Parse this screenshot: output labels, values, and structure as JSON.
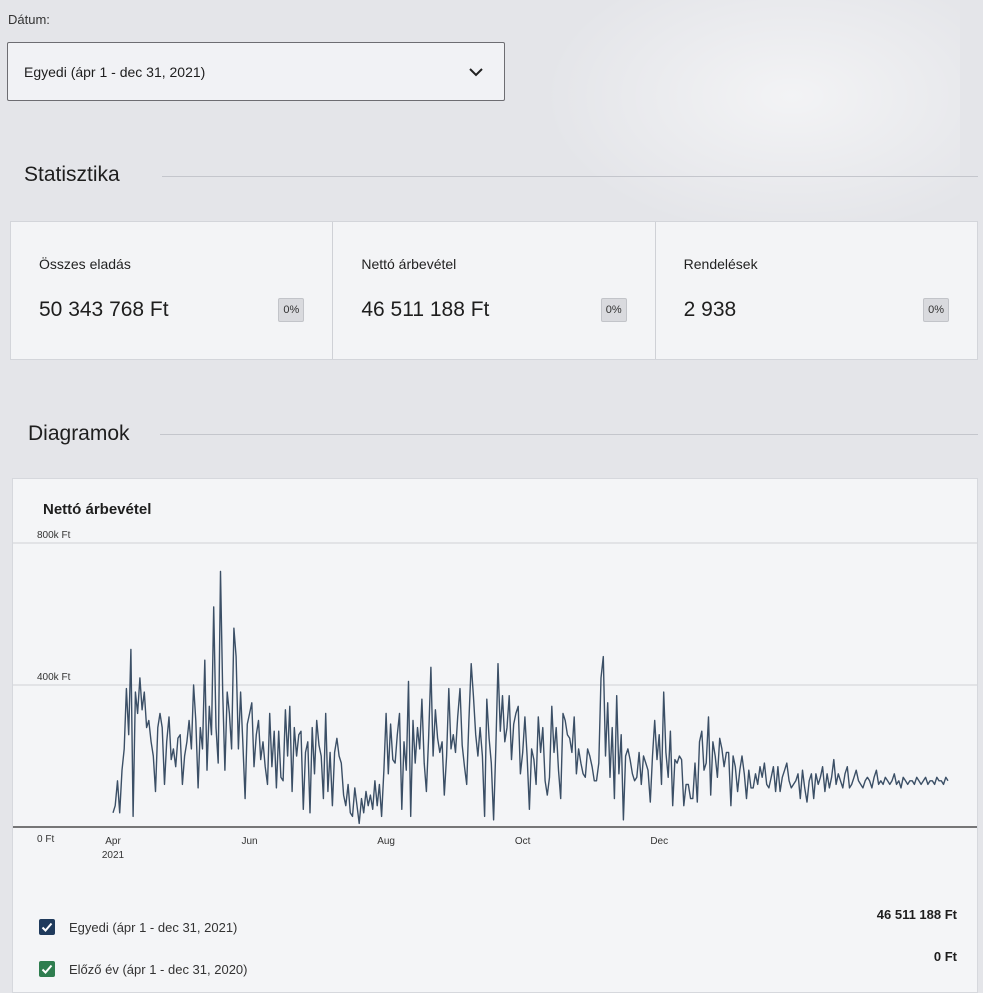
{
  "date_filter": {
    "label": "Dátum:",
    "selected": "Egyedi (ápr 1 - dec 31, 2021)"
  },
  "stats_section": {
    "title": "Statisztika",
    "cards": [
      {
        "label": "Összes eladás",
        "value": "50 343 768 Ft",
        "change": "0%"
      },
      {
        "label": "Nettó árbevétel",
        "value": "46 511 188 Ft",
        "change": "0%"
      },
      {
        "label": "Rendelések",
        "value": "2 938",
        "change": "0%"
      }
    ]
  },
  "charts_section": {
    "title": "Diagramok",
    "chart_title": "Nettó árbevétel"
  },
  "legend": [
    {
      "label": "Egyedi (ápr 1 - dec 31, 2021)",
      "total": "46 511 188 Ft",
      "color": "#1f3a5c"
    },
    {
      "label": "Előző év (ápr 1 - dec 31, 2020)",
      "total": "0 Ft",
      "color": "#2e7d4f"
    }
  ],
  "colors": {
    "line": "#3b4f66",
    "accent": "#1f3a5c"
  },
  "chart_data": {
    "type": "line",
    "title": "Nettó árbevétel",
    "ylim": [
      0,
      800000
    ],
    "y_ticks": [
      0,
      400000,
      800000
    ],
    "y_tick_labels": [
      "0 Ft",
      "400k Ft",
      "800k Ft"
    ],
    "x_ticks": [
      0,
      61,
      122,
      183,
      244
    ],
    "x_tick_labels": [
      "Apr",
      "Jun",
      "Aug",
      "Oct",
      "Dec"
    ],
    "x_year_label": "2021",
    "grid": true,
    "series": [
      {
        "name": "Egyedi (ápr 1 - dec 31, 2021)",
        "values": [
          40000,
          60000,
          130000,
          40000,
          160000,
          220000,
          390000,
          260000,
          500000,
          30000,
          380000,
          320000,
          420000,
          330000,
          380000,
          280000,
          300000,
          240000,
          200000,
          100000,
          280000,
          320000,
          280000,
          120000,
          240000,
          310000,
          190000,
          220000,
          170000,
          250000,
          260000,
          120000,
          200000,
          240000,
          300000,
          220000,
          400000,
          300000,
          110000,
          280000,
          220000,
          470000,
          160000,
          340000,
          260000,
          620000,
          280000,
          180000,
          720000,
          380000,
          160000,
          380000,
          320000,
          220000,
          560000,
          480000,
          220000,
          380000,
          240000,
          80000,
          290000,
          320000,
          350000,
          170000,
          260000,
          300000,
          190000,
          240000,
          170000,
          120000,
          320000,
          170000,
          270000,
          110000,
          270000,
          140000,
          130000,
          330000,
          200000,
          340000,
          100000,
          280000,
          200000,
          260000,
          270000,
          50000,
          210000,
          240000,
          40000,
          280000,
          150000,
          300000,
          230000,
          200000,
          80000,
          320000,
          100000,
          210000,
          60000,
          210000,
          250000,
          200000,
          180000,
          90000,
          60000,
          120000,
          40000,
          30000,
          110000,
          60000,
          10000,
          80000,
          40000,
          100000,
          60000,
          90000,
          50000,
          130000,
          60000,
          120000,
          30000,
          160000,
          320000,
          150000,
          290000,
          190000,
          180000,
          260000,
          320000,
          50000,
          240000,
          160000,
          410000,
          30000,
          300000,
          180000,
          280000,
          220000,
          360000,
          180000,
          100000,
          250000,
          450000,
          200000,
          330000,
          250000,
          210000,
          240000,
          90000,
          200000,
          390000,
          220000,
          260000,
          210000,
          310000,
          390000,
          230000,
          170000,
          120000,
          300000,
          460000,
          370000,
          260000,
          200000,
          280000,
          200000,
          30000,
          360000,
          250000,
          180000,
          20000,
          220000,
          460000,
          270000,
          370000,
          240000,
          280000,
          370000,
          190000,
          290000,
          320000,
          340000,
          150000,
          210000,
          310000,
          200000,
          50000,
          220000,
          190000,
          120000,
          310000,
          210000,
          280000,
          130000,
          90000,
          140000,
          340000,
          210000,
          280000,
          160000,
          80000,
          320000,
          300000,
          260000,
          250000,
          210000,
          310000,
          150000,
          220000,
          180000,
          150000,
          140000,
          220000,
          200000,
          170000,
          130000,
          130000,
          180000,
          420000,
          480000,
          200000,
          350000,
          140000,
          280000,
          80000,
          370000,
          150000,
          260000,
          20000,
          200000,
          220000,
          190000,
          150000,
          130000,
          140000,
          210000,
          120000,
          200000,
          180000,
          160000,
          70000,
          200000,
          300000,
          190000,
          260000,
          120000,
          380000,
          210000,
          140000,
          270000,
          60000,
          190000,
          180000,
          200000,
          190000,
          60000,
          120000,
          120000,
          80000,
          80000,
          180000,
          70000,
          240000,
          270000,
          160000,
          180000,
          310000,
          90000,
          240000,
          200000,
          140000,
          250000,
          220000,
          170000,
          210000,
          210000,
          60000,
          200000,
          170000,
          100000,
          160000,
          200000,
          150000,
          80000,
          160000,
          110000,
          110000,
          150000,
          120000,
          170000,
          140000,
          180000,
          120000,
          110000,
          140000,
          170000,
          100000,
          170000,
          100000,
          140000,
          160000,
          180000,
          130000,
          110000,
          120000,
          130000,
          150000,
          80000,
          160000,
          110000,
          70000,
          130000,
          150000,
          80000,
          150000,
          120000,
          140000,
          170000,
          100000,
          150000,
          110000,
          140000,
          190000,
          120000,
          150000,
          130000,
          110000,
          150000,
          170000,
          110000,
          120000,
          140000,
          160000,
          130000,
          120000,
          110000,
          130000,
          140000,
          130000,
          110000,
          140000,
          160000,
          120000,
          130000,
          120000,
          140000,
          130000,
          120000,
          130000,
          150000,
          120000,
          130000,
          110000,
          140000,
          130000,
          120000,
          130000,
          130000,
          120000,
          140000,
          130000,
          120000,
          130000,
          140000,
          120000,
          130000,
          130000,
          120000,
          140000,
          130000,
          130000,
          120000,
          140000,
          130000
        ]
      }
    ]
  }
}
